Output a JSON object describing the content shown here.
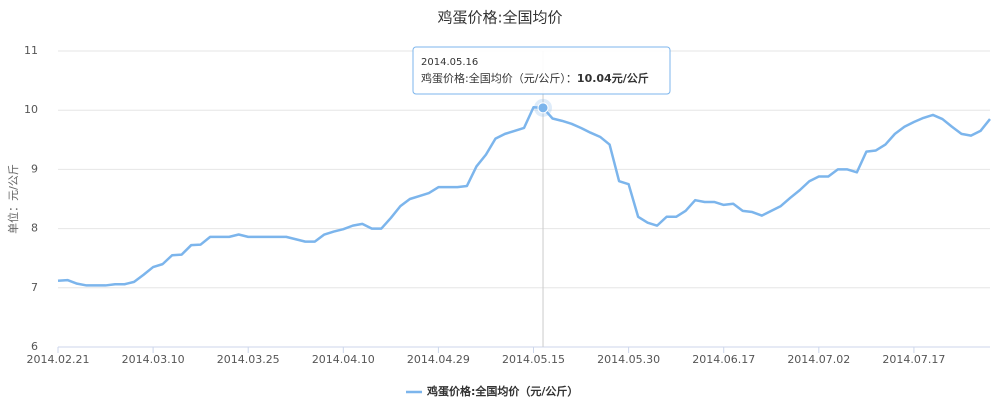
{
  "chart_data": {
    "type": "line",
    "title": "鸡蛋价格:全国均价",
    "y_label": "单位：元/公斤",
    "categories": [
      "2014.02.21",
      null,
      null,
      null,
      null,
      null,
      null,
      null,
      null,
      null,
      "2014.03.10",
      null,
      null,
      null,
      null,
      null,
      null,
      null,
      null,
      null,
      "2014.03.25",
      null,
      null,
      null,
      null,
      null,
      null,
      null,
      null,
      null,
      "2014.04.10",
      null,
      null,
      null,
      null,
      null,
      null,
      null,
      null,
      null,
      "2014.04.29",
      null,
      null,
      null,
      null,
      null,
      null,
      null,
      null,
      null,
      "2014.05.15",
      null,
      null,
      null,
      null,
      null,
      null,
      null,
      null,
      null,
      "2014.05.30",
      null,
      null,
      null,
      null,
      null,
      null,
      null,
      null,
      null,
      "2014.06.17",
      null,
      null,
      null,
      null,
      null,
      null,
      null,
      null,
      null,
      "2014.07.02",
      null,
      null,
      null,
      null,
      null,
      null,
      null,
      null,
      null,
      "2014.07.17",
      null,
      null,
      null,
      null,
      null,
      null,
      null,
      null
    ],
    "series": [
      {
        "name": "鸡蛋价格:全国均价（元/公斤）",
        "color": "#7cb5ec",
        "values": [
          7.12,
          7.13,
          7.07,
          7.04,
          7.04,
          7.04,
          7.06,
          7.06,
          7.1,
          7.22,
          7.35,
          7.4,
          7.55,
          7.56,
          7.72,
          7.73,
          7.86,
          7.86,
          7.86,
          7.9,
          7.86,
          7.86,
          7.86,
          7.86,
          7.86,
          7.82,
          7.78,
          7.78,
          7.9,
          7.95,
          7.99,
          8.05,
          8.08,
          8.0,
          8.0,
          8.18,
          8.38,
          8.5,
          8.55,
          8.6,
          8.7,
          8.7,
          8.7,
          8.72,
          9.05,
          9.25,
          9.52,
          9.6,
          9.65,
          9.7,
          10.05,
          10.04,
          9.86,
          9.82,
          9.77,
          9.7,
          9.62,
          9.55,
          9.42,
          8.8,
          8.75,
          8.2,
          8.1,
          8.05,
          8.2,
          8.2,
          8.3,
          8.48,
          8.45,
          8.45,
          8.4,
          8.42,
          8.3,
          8.28,
          8.22,
          8.3,
          8.38,
          8.52,
          8.65,
          8.8,
          8.88,
          8.88,
          9.0,
          9.0,
          8.95,
          9.3,
          9.32,
          9.42,
          9.6,
          9.72,
          9.8,
          9.87,
          9.92,
          9.85,
          9.72,
          9.6,
          9.57,
          9.65,
          9.85
        ]
      }
    ],
    "ylim": [
      6,
      11
    ],
    "yticks": [
      6,
      7,
      8,
      9,
      10,
      11
    ],
    "grid": true,
    "tooltip": {
      "date": "2014.05.16",
      "series_label": "鸡蛋价格:全国均价（元/公斤）：",
      "value_label": "10.04元/公斤"
    }
  }
}
